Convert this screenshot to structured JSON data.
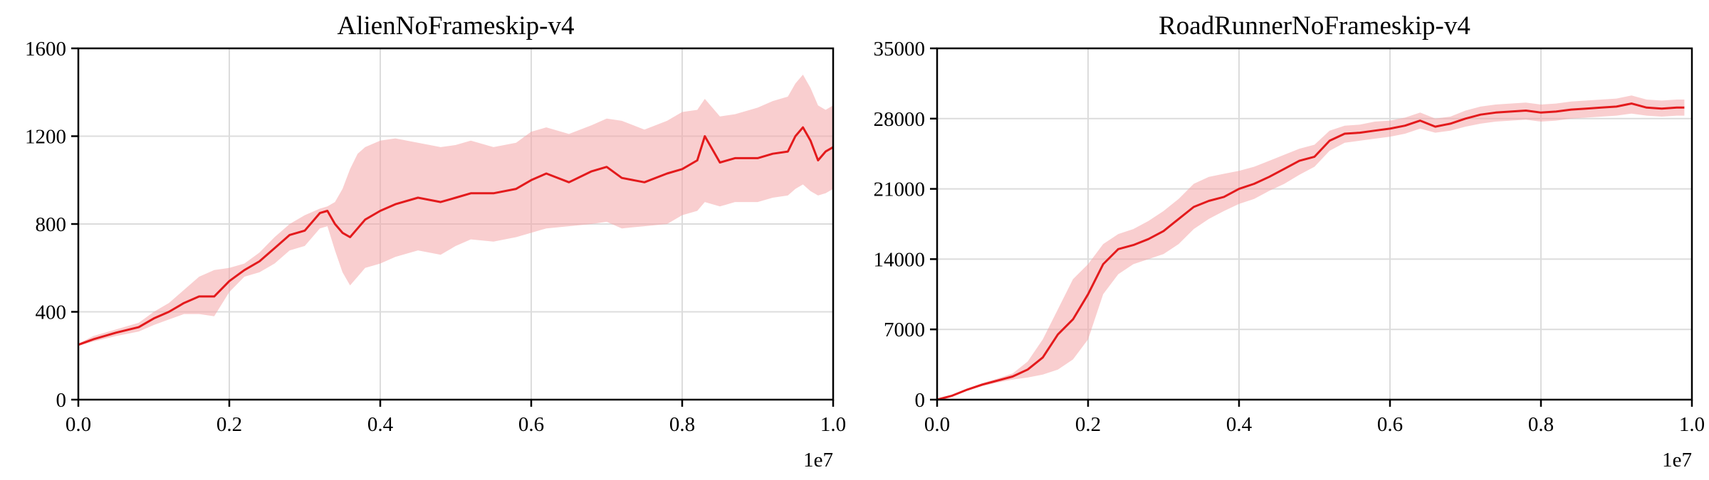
{
  "chart_data": [
    {
      "type": "line",
      "title": "AlienNoFrameskip-v4",
      "xlabel": "",
      "ylabel": "",
      "x_multiplier_label": "1e7",
      "xlim": [
        0.0,
        1.0
      ],
      "ylim": [
        0,
        1600
      ],
      "xticks": [
        0.0,
        0.2,
        0.4,
        0.6,
        0.8,
        1.0
      ],
      "xtick_labels": [
        "0.0",
        "0.2",
        "0.4",
        "0.6",
        "0.8",
        "1.0"
      ],
      "yticks": [
        0,
        400,
        800,
        1200,
        1600
      ],
      "ytick_labels": [
        "0",
        "400",
        "800",
        "1200",
        "1600"
      ],
      "grid": true,
      "legend": "none",
      "line_color": "#e31a1c",
      "band_color": "#f4a6a8",
      "series": [
        {
          "x": [
            0.0,
            0.02,
            0.05,
            0.08,
            0.1,
            0.12,
            0.14,
            0.16,
            0.18,
            0.2,
            0.22,
            0.24,
            0.26,
            0.28,
            0.3,
            0.32,
            0.33,
            0.34,
            0.35,
            0.36,
            0.37,
            0.38,
            0.4,
            0.42,
            0.45,
            0.48,
            0.5,
            0.52,
            0.55,
            0.58,
            0.6,
            0.62,
            0.65,
            0.68,
            0.7,
            0.72,
            0.75,
            0.78,
            0.8,
            0.82,
            0.83,
            0.85,
            0.87,
            0.9,
            0.92,
            0.94,
            0.95,
            0.96,
            0.97,
            0.98,
            0.99,
            1.0
          ],
          "y": [
            250,
            275,
            305,
            330,
            370,
            400,
            440,
            470,
            470,
            540,
            590,
            630,
            690,
            750,
            770,
            850,
            860,
            800,
            760,
            740,
            780,
            820,
            860,
            890,
            920,
            900,
            920,
            940,
            940,
            960,
            1000,
            1030,
            990,
            1040,
            1060,
            1010,
            990,
            1030,
            1050,
            1090,
            1200,
            1080,
            1100,
            1100,
            1120,
            1130,
            1200,
            1240,
            1180,
            1090,
            1130,
            1150
          ],
          "lower": [
            245,
            265,
            290,
            310,
            340,
            365,
            390,
            390,
            380,
            490,
            560,
            580,
            620,
            680,
            700,
            780,
            790,
            680,
            580,
            520,
            560,
            600,
            620,
            650,
            680,
            660,
            700,
            730,
            720,
            740,
            760,
            780,
            790,
            800,
            810,
            780,
            790,
            800,
            840,
            860,
            900,
            880,
            900,
            900,
            920,
            930,
            960,
            980,
            950,
            930,
            940,
            960
          ],
          "upper": [
            255,
            290,
            320,
            350,
            400,
            440,
            500,
            560,
            590,
            600,
            620,
            670,
            740,
            800,
            840,
            870,
            880,
            900,
            960,
            1050,
            1120,
            1150,
            1180,
            1190,
            1170,
            1150,
            1160,
            1180,
            1150,
            1170,
            1220,
            1240,
            1210,
            1250,
            1280,
            1270,
            1230,
            1270,
            1310,
            1320,
            1370,
            1290,
            1300,
            1330,
            1360,
            1380,
            1440,
            1480,
            1420,
            1340,
            1320,
            1340
          ]
        }
      ]
    },
    {
      "type": "line",
      "title": "RoadRunnerNoFrameskip-v4",
      "xlabel": "",
      "ylabel": "",
      "x_multiplier_label": "1e7",
      "xlim": [
        0.0,
        1.0
      ],
      "ylim": [
        0,
        35000
      ],
      "xticks": [
        0.0,
        0.2,
        0.4,
        0.6,
        0.8,
        1.0
      ],
      "xtick_labels": [
        "0.0",
        "0.2",
        "0.4",
        "0.6",
        "0.8",
        "1.0"
      ],
      "yticks": [
        0,
        7000,
        14000,
        21000,
        28000,
        35000
      ],
      "ytick_labels": [
        "0",
        "7000",
        "14000",
        "21000",
        "28000",
        "35000"
      ],
      "grid": true,
      "legend": "none",
      "line_color": "#e31a1c",
      "band_color": "#f4a6a8",
      "series": [
        {
          "x": [
            0.0,
            0.02,
            0.04,
            0.06,
            0.08,
            0.1,
            0.12,
            0.14,
            0.16,
            0.18,
            0.2,
            0.22,
            0.24,
            0.26,
            0.28,
            0.3,
            0.32,
            0.34,
            0.36,
            0.38,
            0.4,
            0.42,
            0.44,
            0.46,
            0.48,
            0.5,
            0.52,
            0.54,
            0.56,
            0.58,
            0.6,
            0.62,
            0.64,
            0.66,
            0.68,
            0.7,
            0.72,
            0.74,
            0.76,
            0.78,
            0.8,
            0.82,
            0.84,
            0.86,
            0.88,
            0.9,
            0.92,
            0.94,
            0.96,
            0.98,
            0.99
          ],
          "y": [
            0,
            400,
            1000,
            1500,
            1900,
            2300,
            3000,
            4200,
            6500,
            8000,
            10500,
            13500,
            15000,
            15400,
            16000,
            16800,
            18000,
            19200,
            19800,
            20200,
            21000,
            21500,
            22200,
            23000,
            23800,
            24200,
            25800,
            26500,
            26600,
            26800,
            27000,
            27300,
            27800,
            27200,
            27500,
            28000,
            28400,
            28600,
            28700,
            28800,
            28600,
            28700,
            28900,
            29000,
            29100,
            29200,
            29500,
            29100,
            29000,
            29100,
            29100
          ]
        },
        {
          "x": [
            0.0,
            0.02,
            0.04,
            0.06,
            0.08,
            0.1,
            0.12,
            0.14,
            0.16,
            0.18,
            0.2,
            0.22,
            0.24,
            0.26,
            0.28,
            0.3,
            0.32,
            0.34,
            0.36,
            0.38,
            0.4,
            0.42,
            0.44,
            0.46,
            0.48,
            0.5,
            0.52,
            0.54,
            0.56,
            0.58,
            0.6,
            0.62,
            0.64,
            0.66,
            0.68,
            0.7,
            0.72,
            0.74,
            0.76,
            0.78,
            0.8,
            0.82,
            0.84,
            0.86,
            0.88,
            0.9,
            0.92,
            0.94,
            0.96,
            0.98,
            0.99
          ],
          "lower": [
            0,
            350,
            900,
            1350,
            1700,
            2000,
            2200,
            2500,
            3000,
            4000,
            6000,
            10500,
            12500,
            13500,
            14000,
            14500,
            15500,
            17000,
            18000,
            18800,
            19500,
            20000,
            20800,
            21500,
            22400,
            23200,
            24800,
            25600,
            25800,
            26000,
            26200,
            26500,
            27000,
            26600,
            26800,
            27200,
            27500,
            27700,
            27800,
            27900,
            27700,
            27800,
            28000,
            28100,
            28200,
            28300,
            28500,
            28300,
            28200,
            28300,
            28300
          ],
          "upper": [
            0,
            450,
            1100,
            1650,
            2100,
            2600,
            3800,
            6000,
            9000,
            12000,
            13500,
            15500,
            16500,
            17000,
            17800,
            18800,
            20000,
            21500,
            22200,
            22500,
            22800,
            23200,
            23800,
            24400,
            25000,
            25400,
            26800,
            27300,
            27400,
            27700,
            27800,
            28100,
            28600,
            28000,
            28200,
            28800,
            29200,
            29400,
            29500,
            29600,
            29400,
            29500,
            29700,
            29800,
            29900,
            30000,
            30300,
            29900,
            29800,
            29900,
            29900
          ]
        }
      ]
    }
  ]
}
